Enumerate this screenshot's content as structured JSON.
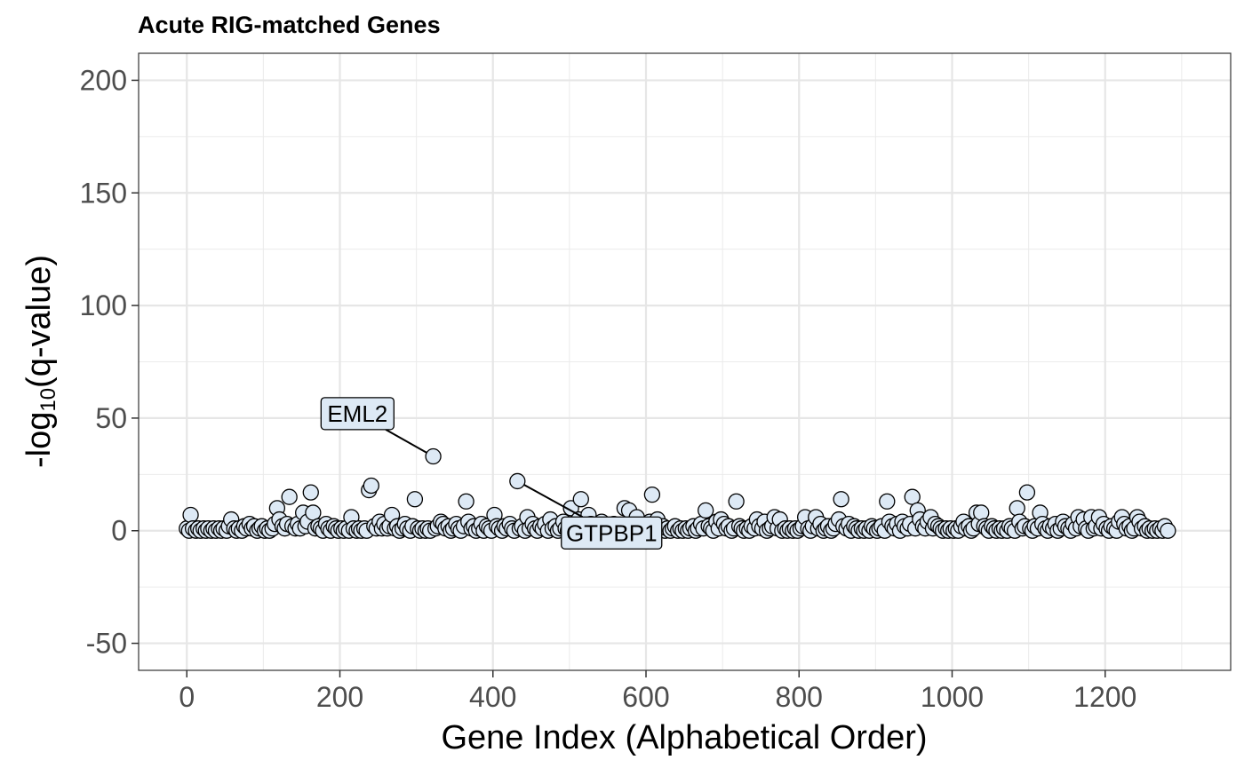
{
  "chart_data": {
    "type": "scatter",
    "title": "Acute RIG-matched Genes",
    "xlabel": "Gene Index (Alphabetical Order)",
    "ylabel_prefix": "-log",
    "ylabel_sub": "10",
    "ylabel_suffix": "(q-value)",
    "xlim": [
      -63,
      1364
    ],
    "ylim": [
      -62,
      212
    ],
    "x_ticks": [
      0,
      200,
      400,
      600,
      800,
      1000,
      1200
    ],
    "y_ticks": [
      -50,
      0,
      50,
      100,
      150,
      200
    ],
    "x_tick_labels": [
      "0",
      "200",
      "400",
      "600",
      "800",
      "1000",
      "1200"
    ],
    "y_tick_labels": [
      "-50",
      "0",
      "50",
      "100",
      "150",
      "200"
    ],
    "grid": true,
    "point_fill": "#dde9f5",
    "point_stroke": "#000000",
    "labels": [
      {
        "text": "EML2",
        "x": 322,
        "y": 33,
        "label_x": 223,
        "label_y": 52
      },
      {
        "text": "GTPBP1",
        "x": 432,
        "y": 22,
        "label_x": 555,
        "label_y": -1
      }
    ],
    "points": [
      [
        0,
        1
      ],
      [
        3,
        0
      ],
      [
        5,
        7
      ],
      [
        8,
        1
      ],
      [
        12,
        0
      ],
      [
        15,
        1
      ],
      [
        18,
        0
      ],
      [
        22,
        1
      ],
      [
        25,
        0
      ],
      [
        28,
        1
      ],
      [
        32,
        0
      ],
      [
        35,
        1
      ],
      [
        38,
        0
      ],
      [
        42,
        1
      ],
      [
        45,
        0
      ],
      [
        48,
        1
      ],
      [
        52,
        0
      ],
      [
        55,
        2
      ],
      [
        58,
        5
      ],
      [
        62,
        1
      ],
      [
        65,
        0
      ],
      [
        68,
        1
      ],
      [
        72,
        0
      ],
      [
        75,
        2
      ],
      [
        78,
        1
      ],
      [
        82,
        3
      ],
      [
        85,
        1
      ],
      [
        88,
        2
      ],
      [
        92,
        0
      ],
      [
        95,
        1
      ],
      [
        98,
        2
      ],
      [
        102,
        0
      ],
      [
        105,
        1
      ],
      [
        108,
        0
      ],
      [
        112,
        1
      ],
      [
        115,
        3
      ],
      [
        118,
        10
      ],
      [
        121,
        5
      ],
      [
        125,
        2
      ],
      [
        128,
        1
      ],
      [
        131,
        3
      ],
      [
        134,
        15
      ],
      [
        138,
        2
      ],
      [
        142,
        1
      ],
      [
        145,
        3
      ],
      [
        148,
        1
      ],
      [
        152,
        8
      ],
      [
        155,
        2
      ],
      [
        158,
        4
      ],
      [
        162,
        17
      ],
      [
        165,
        8
      ],
      [
        168,
        1
      ],
      [
        172,
        2
      ],
      [
        175,
        1
      ],
      [
        178,
        0
      ],
      [
        182,
        3
      ],
      [
        185,
        1
      ],
      [
        188,
        0
      ],
      [
        192,
        2
      ],
      [
        195,
        1
      ],
      [
        198,
        0
      ],
      [
        202,
        1
      ],
      [
        205,
        0
      ],
      [
        208,
        1
      ],
      [
        212,
        0
      ],
      [
        215,
        6
      ],
      [
        218,
        1
      ],
      [
        222,
        0
      ],
      [
        225,
        1
      ],
      [
        228,
        0
      ],
      [
        232,
        1
      ],
      [
        235,
        0
      ],
      [
        238,
        18
      ],
      [
        241,
        20
      ],
      [
        245,
        2
      ],
      [
        248,
        1
      ],
      [
        252,
        4
      ],
      [
        255,
        1
      ],
      [
        258,
        3
      ],
      [
        262,
        1
      ],
      [
        265,
        2
      ],
      [
        268,
        7
      ],
      [
        272,
        1
      ],
      [
        275,
        2
      ],
      [
        278,
        0
      ],
      [
        282,
        1
      ],
      [
        285,
        3
      ],
      [
        288,
        1
      ],
      [
        292,
        0
      ],
      [
        295,
        2
      ],
      [
        298,
        14
      ],
      [
        302,
        1
      ],
      [
        305,
        0
      ],
      [
        308,
        1
      ],
      [
        312,
        0
      ],
      [
        315,
        1
      ],
      [
        318,
        0
      ],
      [
        322,
        33
      ],
      [
        325,
        1
      ],
      [
        328,
        2
      ],
      [
        332,
        4
      ],
      [
        335,
        3
      ],
      [
        338,
        1
      ],
      [
        342,
        2
      ],
      [
        345,
        0
      ],
      [
        348,
        1
      ],
      [
        352,
        3
      ],
      [
        355,
        1
      ],
      [
        358,
        0
      ],
      [
        362,
        2
      ],
      [
        365,
        13
      ],
      [
        368,
        4
      ],
      [
        372,
        1
      ],
      [
        375,
        2
      ],
      [
        378,
        0
      ],
      [
        382,
        1
      ],
      [
        385,
        3
      ],
      [
        388,
        0
      ],
      [
        392,
        2
      ],
      [
        395,
        1
      ],
      [
        398,
        0
      ],
      [
        402,
        7
      ],
      [
        405,
        2
      ],
      [
        408,
        1
      ],
      [
        412,
        0
      ],
      [
        415,
        2
      ],
      [
        418,
        1
      ],
      [
        422,
        3
      ],
      [
        425,
        1
      ],
      [
        428,
        0
      ],
      [
        432,
        22
      ],
      [
        435,
        1
      ],
      [
        438,
        2
      ],
      [
        442,
        0
      ],
      [
        445,
        6
      ],
      [
        448,
        1
      ],
      [
        452,
        3
      ],
      [
        455,
        1
      ],
      [
        458,
        0
      ],
      [
        462,
        2
      ],
      [
        465,
        1
      ],
      [
        468,
        3
      ],
      [
        472,
        0
      ],
      [
        475,
        5
      ],
      [
        478,
        1
      ],
      [
        482,
        2
      ],
      [
        485,
        0
      ],
      [
        488,
        1
      ],
      [
        492,
        4
      ],
      [
        495,
        1
      ],
      [
        498,
        0
      ],
      [
        502,
        10
      ],
      [
        505,
        2
      ],
      [
        508,
        1
      ],
      [
        512,
        5
      ],
      [
        515,
        14
      ],
      [
        518,
        2
      ],
      [
        522,
        1
      ],
      [
        525,
        7
      ],
      [
        528,
        3
      ],
      [
        532,
        1
      ],
      [
        535,
        2
      ],
      [
        538,
        0
      ],
      [
        542,
        4
      ],
      [
        545,
        1
      ],
      [
        548,
        2
      ],
      [
        552,
        0
      ],
      [
        555,
        1
      ],
      [
        558,
        3
      ],
      [
        562,
        1
      ],
      [
        565,
        0
      ],
      [
        568,
        2
      ],
      [
        572,
        10
      ],
      [
        575,
        1
      ],
      [
        578,
        9
      ],
      [
        582,
        3
      ],
      [
        585,
        1
      ],
      [
        588,
        6
      ],
      [
        592,
        2
      ],
      [
        595,
        1
      ],
      [
        598,
        0
      ],
      [
        602,
        2
      ],
      [
        605,
        4
      ],
      [
        608,
        16
      ],
      [
        612,
        1
      ],
      [
        615,
        5
      ],
      [
        618,
        1
      ],
      [
        622,
        2
      ],
      [
        625,
        0
      ],
      [
        628,
        1
      ],
      [
        632,
        0
      ],
      [
        635,
        1
      ],
      [
        638,
        2
      ],
      [
        642,
        0
      ],
      [
        645,
        1
      ],
      [
        648,
        0
      ],
      [
        652,
        1
      ],
      [
        655,
        0
      ],
      [
        658,
        1
      ],
      [
        662,
        2
      ],
      [
        665,
        0
      ],
      [
        668,
        1
      ],
      [
        672,
        3
      ],
      [
        675,
        1
      ],
      [
        678,
        9
      ],
      [
        682,
        2
      ],
      [
        685,
        1
      ],
      [
        688,
        0
      ],
      [
        692,
        4
      ],
      [
        695,
        1
      ],
      [
        698,
        5
      ],
      [
        702,
        3
      ],
      [
        705,
        1
      ],
      [
        708,
        2
      ],
      [
        712,
        0
      ],
      [
        715,
        1
      ],
      [
        718,
        13
      ],
      [
        722,
        2
      ],
      [
        725,
        1
      ],
      [
        728,
        0
      ],
      [
        732,
        1
      ],
      [
        735,
        0
      ],
      [
        738,
        2
      ],
      [
        742,
        1
      ],
      [
        745,
        5
      ],
      [
        748,
        2
      ],
      [
        752,
        1
      ],
      [
        755,
        4
      ],
      [
        758,
        0
      ],
      [
        762,
        1
      ],
      [
        765,
        2
      ],
      [
        768,
        6
      ],
      [
        772,
        1
      ],
      [
        775,
        5
      ],
      [
        778,
        0
      ],
      [
        782,
        1
      ],
      [
        785,
        0
      ],
      [
        788,
        1
      ],
      [
        792,
        0
      ],
      [
        795,
        1
      ],
      [
        798,
        0
      ],
      [
        802,
        1
      ],
      [
        805,
        2
      ],
      [
        808,
        6
      ],
      [
        812,
        1
      ],
      [
        815,
        0
      ],
      [
        818,
        2
      ],
      [
        822,
        6
      ],
      [
        825,
        1
      ],
      [
        828,
        3
      ],
      [
        832,
        0
      ],
      [
        835,
        1
      ],
      [
        838,
        2
      ],
      [
        842,
        0
      ],
      [
        845,
        1
      ],
      [
        848,
        3
      ],
      [
        852,
        5
      ],
      [
        855,
        14
      ],
      [
        858,
        2
      ],
      [
        862,
        1
      ],
      [
        865,
        3
      ],
      [
        868,
        0
      ],
      [
        872,
        2
      ],
      [
        875,
        1
      ],
      [
        878,
        0
      ],
      [
        882,
        1
      ],
      [
        885,
        0
      ],
      [
        888,
        1
      ],
      [
        892,
        0
      ],
      [
        895,
        2
      ],
      [
        898,
        1
      ],
      [
        902,
        0
      ],
      [
        905,
        1
      ],
      [
        908,
        2
      ],
      [
        912,
        0
      ],
      [
        915,
        13
      ],
      [
        918,
        4
      ],
      [
        922,
        2
      ],
      [
        925,
        1
      ],
      [
        928,
        3
      ],
      [
        932,
        0
      ],
      [
        935,
        4
      ],
      [
        938,
        2
      ],
      [
        942,
        1
      ],
      [
        945,
        3
      ],
      [
        948,
        15
      ],
      [
        952,
        1
      ],
      [
        955,
        9
      ],
      [
        958,
        5
      ],
      [
        962,
        2
      ],
      [
        965,
        1
      ],
      [
        968,
        4
      ],
      [
        972,
        6
      ],
      [
        975,
        1
      ],
      [
        978,
        3
      ],
      [
        982,
        2
      ],
      [
        985,
        1
      ],
      [
        988,
        0
      ],
      [
        992,
        1
      ],
      [
        995,
        0
      ],
      [
        998,
        1
      ],
      [
        1002,
        0
      ],
      [
        1005,
        1
      ],
      [
        1008,
        0
      ],
      [
        1012,
        2
      ],
      [
        1015,
        4
      ],
      [
        1018,
        1
      ],
      [
        1022,
        2
      ],
      [
        1025,
        0
      ],
      [
        1028,
        1
      ],
      [
        1032,
        8
      ],
      [
        1035,
        3
      ],
      [
        1038,
        8
      ],
      [
        1042,
        2
      ],
      [
        1045,
        1
      ],
      [
        1048,
        0
      ],
      [
        1052,
        2
      ],
      [
        1055,
        1
      ],
      [
        1058,
        0
      ],
      [
        1062,
        1
      ],
      [
        1065,
        0
      ],
      [
        1068,
        1
      ],
      [
        1072,
        0
      ],
      [
        1075,
        2
      ],
      [
        1078,
        1
      ],
      [
        1082,
        0
      ],
      [
        1085,
        10
      ],
      [
        1088,
        4
      ],
      [
        1092,
        1
      ],
      [
        1095,
        2
      ],
      [
        1098,
        17
      ],
      [
        1102,
        1
      ],
      [
        1105,
        0
      ],
      [
        1108,
        2
      ],
      [
        1112,
        1
      ],
      [
        1115,
        8
      ],
      [
        1118,
        3
      ],
      [
        1122,
        1
      ],
      [
        1125,
        0
      ],
      [
        1128,
        2
      ],
      [
        1132,
        1
      ],
      [
        1135,
        3
      ],
      [
        1138,
        0
      ],
      [
        1142,
        1
      ],
      [
        1145,
        4
      ],
      [
        1148,
        2
      ],
      [
        1152,
        1
      ],
      [
        1155,
        0
      ],
      [
        1158,
        3
      ],
      [
        1162,
        1
      ],
      [
        1165,
        6
      ],
      [
        1168,
        2
      ],
      [
        1172,
        5
      ],
      [
        1175,
        1
      ],
      [
        1178,
        0
      ],
      [
        1182,
        6
      ],
      [
        1185,
        1
      ],
      [
        1188,
        2
      ],
      [
        1192,
        6
      ],
      [
        1195,
        1
      ],
      [
        1198,
        3
      ],
      [
        1202,
        1
      ],
      [
        1205,
        0
      ],
      [
        1208,
        2
      ],
      [
        1212,
        1
      ],
      [
        1215,
        0
      ],
      [
        1218,
        4
      ],
      [
        1222,
        6
      ],
      [
        1225,
        3
      ],
      [
        1228,
        1
      ],
      [
        1232,
        2
      ],
      [
        1235,
        0
      ],
      [
        1238,
        1
      ],
      [
        1242,
        6
      ],
      [
        1245,
        4
      ],
      [
        1248,
        1
      ],
      [
        1252,
        2
      ],
      [
        1255,
        0
      ],
      [
        1258,
        1
      ],
      [
        1262,
        0
      ],
      [
        1265,
        1
      ],
      [
        1268,
        0
      ],
      [
        1272,
        1
      ],
      [
        1275,
        0
      ],
      [
        1278,
        2
      ],
      [
        1282,
        0
      ]
    ]
  }
}
